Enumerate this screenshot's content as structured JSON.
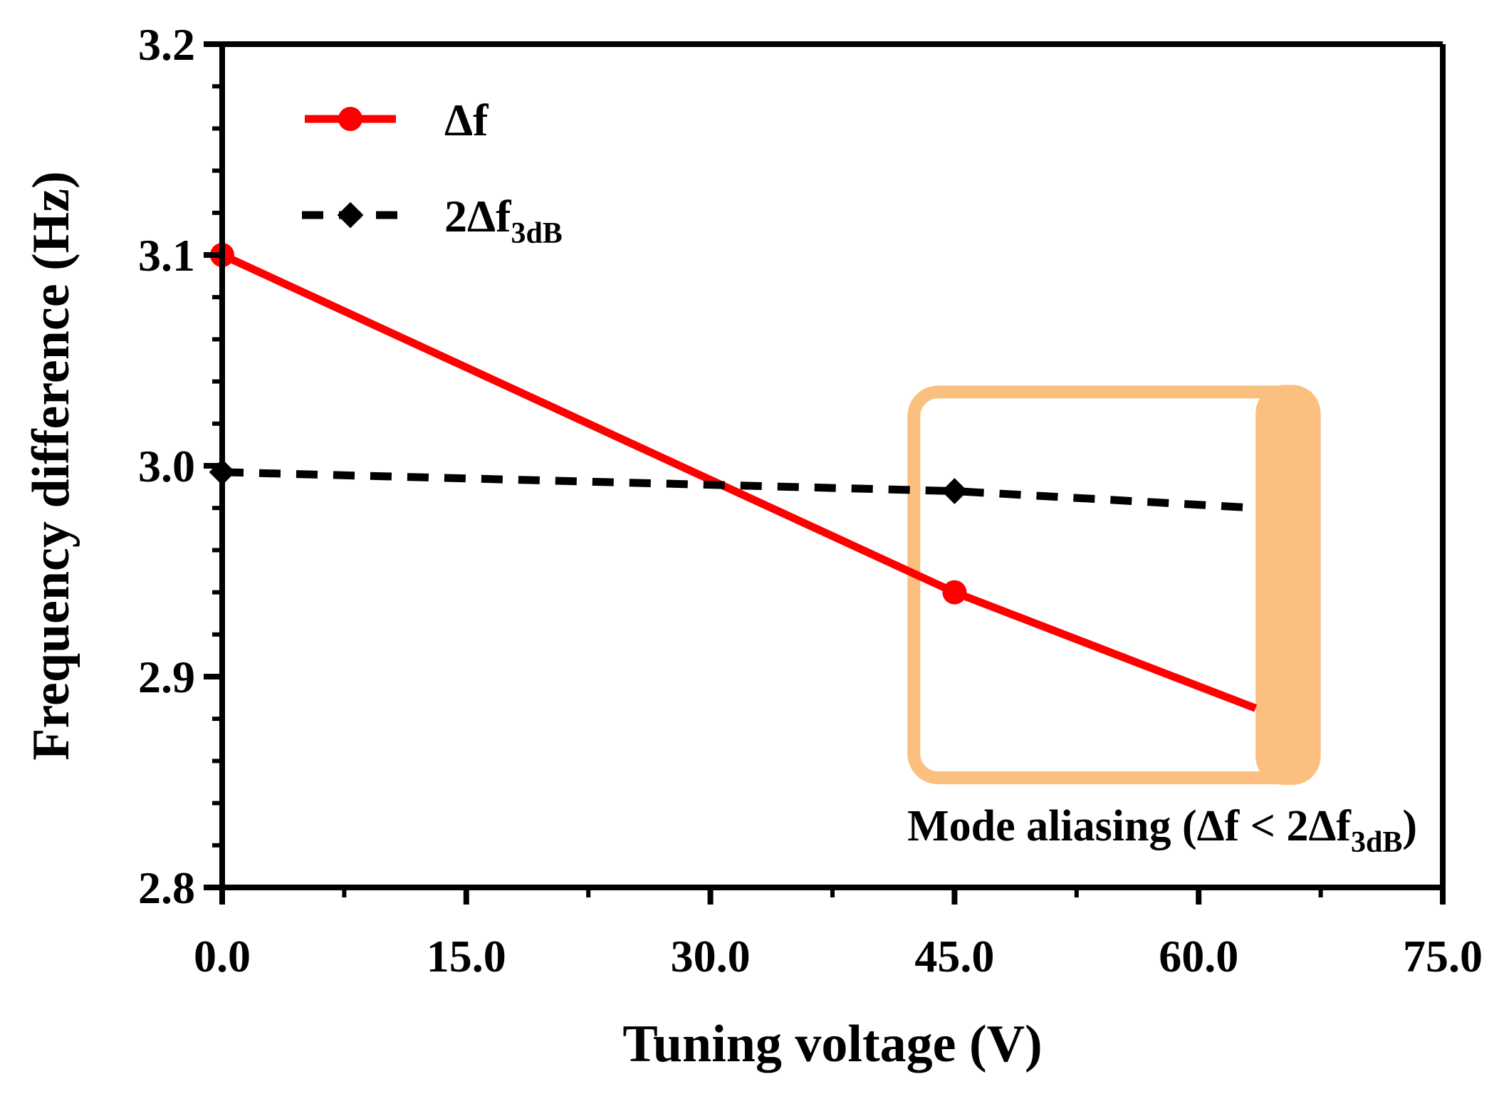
{
  "chart_data": {
    "type": "line",
    "xlabel": "Tuning voltage (V)",
    "ylabel": "Frequency difference (Hz)",
    "xlim": [
      0,
      75
    ],
    "ylim": [
      2.8,
      3.2
    ],
    "xticks": [
      0,
      15,
      30,
      45,
      60,
      75
    ],
    "xtick_labels": [
      "0.0",
      "15.0",
      "30.0",
      "45.0",
      "60.0",
      "75.0"
    ],
    "yticks": [
      2.8,
      2.9,
      3.0,
      3.1,
      3.2
    ],
    "ytick_labels": [
      "2.8",
      "2.9",
      "3.0",
      "3.1",
      "3.2"
    ],
    "grid": false,
    "legend_position": "top-left",
    "series": [
      {
        "name": "Δf",
        "legend_main": "Δf",
        "legend_sub": "",
        "style": "solid",
        "marker": "circle",
        "color": "#ff0000",
        "x": [
          0,
          45,
          63.5
        ],
        "values": [
          3.1,
          2.94,
          2.885
        ],
        "marked": [
          true,
          true,
          false
        ]
      },
      {
        "name": "2Δf3dB",
        "legend_main": "2Δf",
        "legend_sub": "3dB",
        "style": "dashed",
        "marker": "diamond",
        "color": "#000000",
        "x": [
          0,
          45,
          63.5
        ],
        "values": [
          2.997,
          2.988,
          2.98
        ],
        "marked": [
          true,
          true,
          false
        ]
      }
    ],
    "annotation": {
      "text_main": "Mode aliasing (Δf < 2Δf",
      "text_sub": "3dB",
      "text_end": ")",
      "region_x": [
        42.5,
        67.5
      ],
      "region_y": [
        2.852,
        3.035
      ],
      "color": "#fbbf80"
    }
  }
}
